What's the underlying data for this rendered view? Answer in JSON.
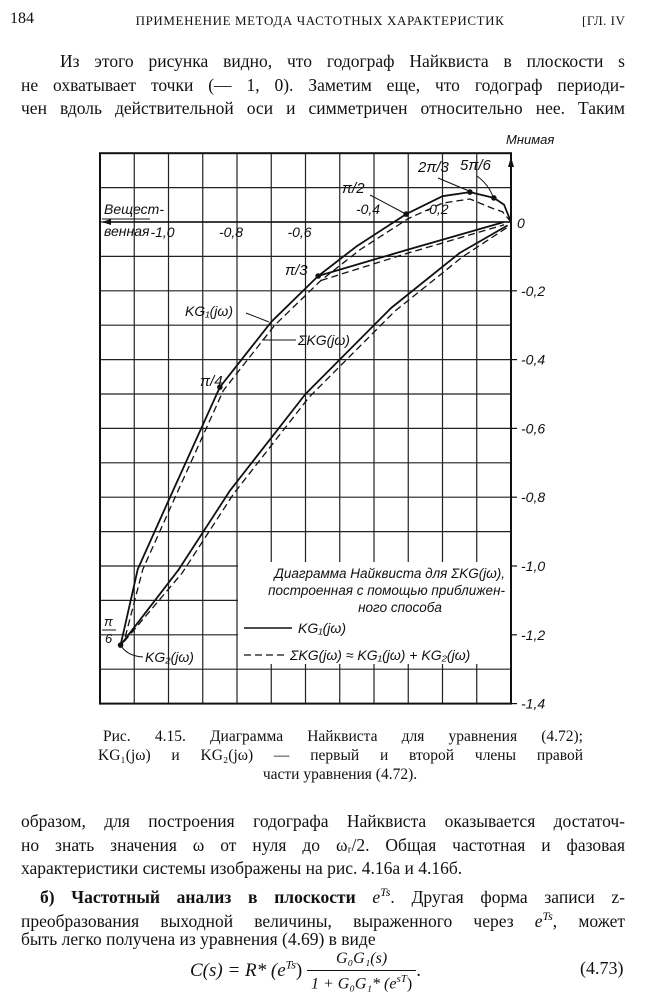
{
  "header": {
    "page_number": "184",
    "running_title": "ПРИМЕНЕНИЕ МЕТОДА ЧАСТОТНЫХ ХАРАКТЕРИСТИК",
    "chapter": "[ГЛ. IV"
  },
  "paragraph1": [
    "Из этого рисунка видно, что годограф Найквиста в плоскости s",
    "не охватывает точки (— 1, 0). Заметим еще, что годограф периоди-",
    "чен вдоль действительной оси и симметричен относительно нее. Таким"
  ],
  "caption": [
    "Рис. 4.15. Диаграмма Найквиста для уравнения (4.72);",
    "KG₁(jω) и KG₂(jω) — первый и второй члены правой",
    "части уравнения (4.72)."
  ],
  "paragraph2": {
    "line1": "образом, для построения годографа Найквиста оказывается достаточ-",
    "line2": "но знать значения ω от нуля до ωᵣ/2. Общая частотная и фазовая",
    "line3": "характеристики системы изображены на рис. 4.16а и 4.16б.",
    "line4_bold": "б) Частотный анализ в плоскости ",
    "line4_e": "e",
    "line4_sup": "Ts",
    "line4_rest": ". Другая форма записи z-",
    "line5_a": "преобразования выходной величины, выраженного через ",
    "line5_e": "e",
    "line5_sup": "Ts",
    "line5_rest": ", может",
    "line6": "быть легко получена из уравнения (4.69) в виде"
  },
  "equation": {
    "lhs": "C(s) = R* (e",
    "lhs_sup": "Ts",
    "lhs_end": ")",
    "numerator": "G₀G₁(s)",
    "denominator": "1 + G₀G₁* (e",
    "den_sup": "sT",
    "den_end": ")",
    "dot": ".",
    "number": "(4.73)"
  },
  "chart_data": {
    "type": "line",
    "xlabel": "Вещест- венная",
    "ylabel": "Мнимая",
    "xlim": [
      -1.2,
      0
    ],
    "ylim": [
      -1.4,
      0.2
    ],
    "grid": true,
    "x_ticks": [
      {
        "value": -1.0,
        "label": "-1,0"
      },
      {
        "value": -0.8,
        "label": "-0,8"
      },
      {
        "value": -0.6,
        "label": "-0,6"
      },
      {
        "value": -0.4,
        "label": "-0,4"
      },
      {
        "value": -0.2,
        "label": "-0,2"
      },
      {
        "value": 0,
        "label": "0"
      }
    ],
    "y_ticks": [
      {
        "value": -0.2,
        "label": "-0,2"
      },
      {
        "value": -0.4,
        "label": "-0,4"
      },
      {
        "value": -0.6,
        "label": "-0,6"
      },
      {
        "value": -0.8,
        "label": "-0,8"
      },
      {
        "value": -1.0,
        "label": "-1,0"
      },
      {
        "value": -1.2,
        "label": "-1,2"
      },
      {
        "value": -1.4,
        "label": "-1,4"
      }
    ],
    "series": [
      {
        "name": "KG₁(jω)",
        "style": "solid",
        "color": "#111111",
        "segments": [
          [
            [
              0,
              0
            ],
            [
              -0.02,
              0.05
            ],
            [
              -0.05,
              0.07
            ],
            [
              -0.12,
              0.087
            ],
            [
              -0.2,
              0.075
            ],
            [
              -0.306,
              0.023
            ],
            [
              -0.45,
              -0.07
            ],
            [
              -0.563,
              -0.157
            ],
            [
              -0.7,
              -0.29
            ],
            [
              -0.85,
              -0.48
            ],
            [
              -1.0,
              -0.81
            ],
            [
              -1.09,
              -1.01
            ],
            [
              -1.14,
              -1.23
            ]
          ],
          [
            [
              -1.14,
              -1.23
            ],
            [
              -0.97,
              -1.01
            ],
            [
              -0.82,
              -0.78
            ],
            [
              -0.6,
              -0.5
            ],
            [
              -0.35,
              -0.25
            ],
            [
              -0.15,
              -0.09
            ],
            [
              -0.01,
              -0.01
            ]
          ],
          [
            [
              -0.563,
              -0.157
            ],
            [
              -0.3,
              -0.08
            ],
            [
              -0.02,
              0
            ]
          ]
        ]
      },
      {
        "name": "ΣKG(jω) ≈ KG₁(jω) + KG₂(jω)",
        "style": "dashed",
        "color": "#111111",
        "segments": [
          [
            [
              0,
              0
            ],
            [
              -0.025,
              0.03
            ],
            [
              -0.05,
              0.038
            ],
            [
              -0.12,
              0.067
            ],
            [
              -0.2,
              0.055
            ],
            [
              -0.3,
              0.01
            ],
            [
              -0.44,
              -0.08
            ],
            [
              -0.555,
              -0.17
            ],
            [
              -0.69,
              -0.3
            ],
            [
              -0.84,
              -0.49
            ],
            [
              -0.985,
              -0.81
            ],
            [
              -1.075,
              -1.01
            ],
            [
              -1.13,
              -1.22
            ]
          ],
          [
            [
              -1.13,
              -1.22
            ],
            [
              -0.96,
              -1.02
            ],
            [
              -0.81,
              -0.79
            ],
            [
              -0.59,
              -0.51
            ],
            [
              -0.34,
              -0.26
            ],
            [
              -0.14,
              -0.1
            ],
            [
              -0.01,
              -0.015
            ]
          ],
          [
            [
              -0.555,
              -0.17
            ],
            [
              -0.3,
              -0.09
            ],
            [
              -0.02,
              -0.008
            ]
          ]
        ]
      }
    ],
    "points": [
      {
        "label": "π/2",
        "x": -0.306,
        "y": 0.023
      },
      {
        "label": "2π/3",
        "x": -0.12,
        "y": 0.087
      },
      {
        "label": "5π/6",
        "x": -0.05,
        "y": 0.07
      },
      {
        "label": "π/3",
        "x": -0.563,
        "y": -0.157
      },
      {
        "label": "π/4",
        "x": -0.85,
        "y": -0.48
      },
      {
        "label": "π/6",
        "x": -1.14,
        "y": -1.23
      }
    ],
    "annotations": [
      "KG₁(jω)",
      "ΣKG(jω)",
      "KG₂(jω)"
    ],
    "legend": {
      "position": "bottom-right",
      "title_lines": [
        "Диаграмма Найквиста для ΣKG(jω),",
        "построенная с помощью приближен-",
        "ного способа"
      ],
      "entries": [
        "KG₁(jω)",
        "ΣKG(jω) ≈ KG₁(jω) + KG₂(jω)"
      ]
    }
  }
}
